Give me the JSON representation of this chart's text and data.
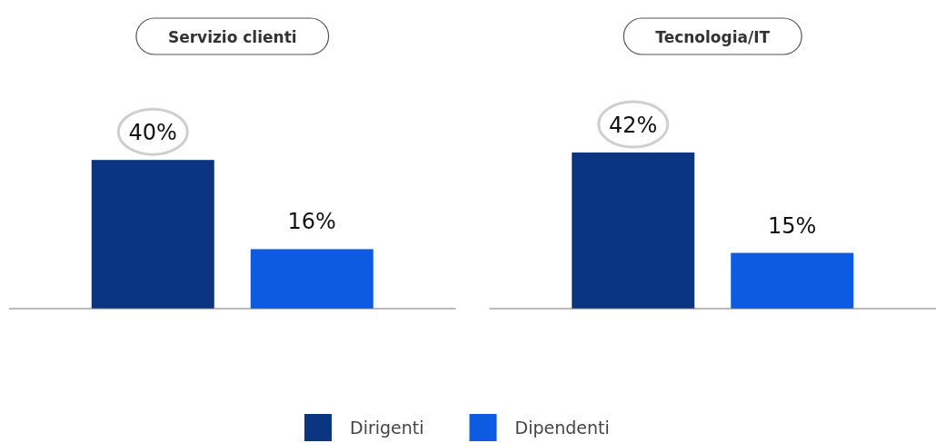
{
  "chart_data": {
    "type": "bar",
    "categories": [
      "Servizio clienti",
      "Tecnologia/IT"
    ],
    "legend": "bottom",
    "series": [
      {
        "name": "Dirigenti",
        "color": "#0b3580",
        "values": [
          40,
          42
        ],
        "value_labels": [
          "40%",
          "42%"
        ]
      },
      {
        "name": "Dipendenti",
        "color": "#0d5be1",
        "values": [
          16,
          15
        ],
        "value_labels": [
          "16%",
          "15%"
        ]
      }
    ]
  }
}
